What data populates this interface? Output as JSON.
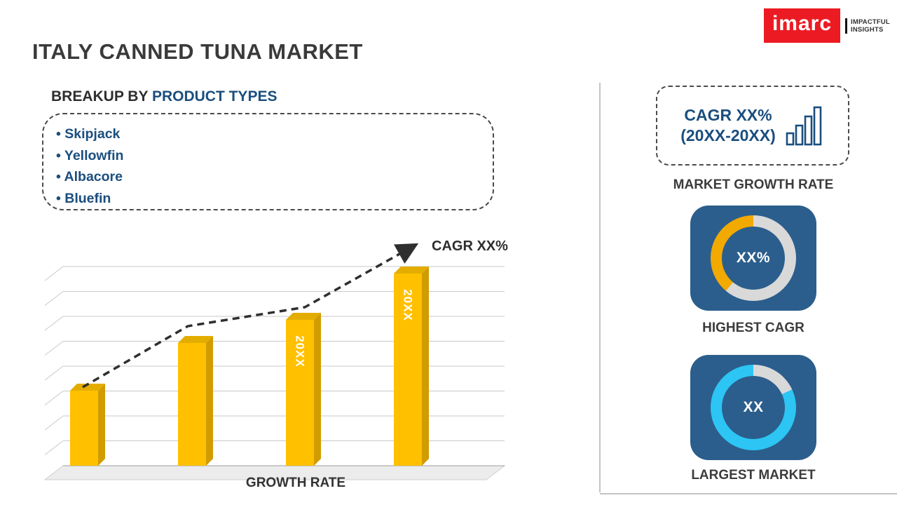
{
  "title": "ITALY CANNED TUNA MARKET",
  "logo": {
    "brand": "imarc",
    "tagline_line1": "IMPACTFUL",
    "tagline_line2": "INSIGHTS"
  },
  "breakup": {
    "heading_prefix": "BREAKUP BY ",
    "heading_highlight": "PRODUCT TYPES",
    "items": [
      "Skipjack",
      "Yellowfin",
      "Albacore",
      "Bluefin"
    ]
  },
  "chart_data": {
    "type": "bar",
    "title": "",
    "categories": [
      "",
      "",
      "20XX",
      "20XX"
    ],
    "values": [
      39,
      64,
      76,
      100
    ],
    "value_units": "relative bar height (axis unlabeled)",
    "ylim": [
      0,
      100
    ],
    "bar_labels": [
      "",
      "",
      "20XX",
      "20XX"
    ],
    "xlabel": "GROWTH RATE",
    "ylabel": "",
    "annotation": "CAGR XX%",
    "trendline": "dashed rising arrow",
    "grid": true,
    "legend": "none",
    "bar_color": "#FFC000",
    "bar_side_color": "#D09C00",
    "bar_top_color": "#E3AD00"
  },
  "sidebar": {
    "cagr_card": {
      "line1": "CAGR XX%",
      "line2": "(20XX-20XX)",
      "icon": "bar-chart-icon"
    },
    "market_growth_label": "MARKET GROWTH RATE",
    "highest_cagr": {
      "value": "XX%",
      "label": "HIGHEST CAGR",
      "arc_color": "#F2A900",
      "arc_start_deg": 220,
      "arc_sweep_deg": 140
    },
    "largest_market": {
      "value": "XX",
      "label": "LARGEST MARKET",
      "arc_color": "#2CC5F4",
      "arc_start_deg": 65,
      "arc_sweep_deg": 295
    }
  },
  "colors": {
    "accent_blue": "#1B4E7E",
    "square_blue": "#2B5E8C",
    "donut_track": "#D9D9D9",
    "logo_red": "#EC1B23",
    "arrow": "#2F2F2F"
  }
}
